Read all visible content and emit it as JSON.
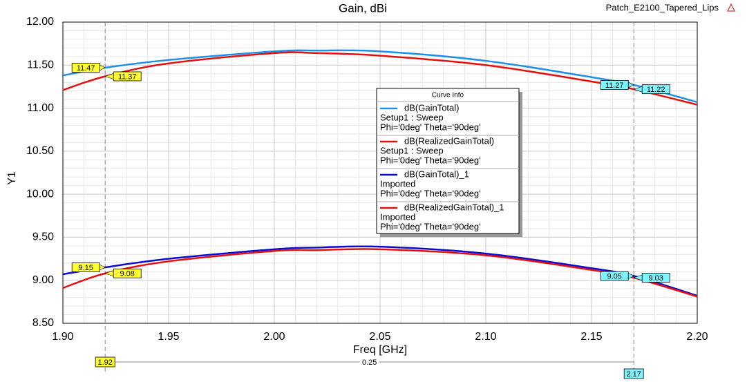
{
  "chart_data": {
    "type": "line",
    "title": "Gain, dBi",
    "design": "Patch_E2100_Tapered_Lips",
    "xlabel": "Freq [GHz]",
    "ylabel": "Y1",
    "x": [
      1.9,
      1.92,
      1.95,
      2.0,
      2.02,
      2.05,
      2.1,
      2.15,
      2.17,
      2.2
    ],
    "series": [
      {
        "name": "dB(GainTotal)",
        "source": "Setup1 : Sweep",
        "context": "Phi='0deg' Theta='90deg'",
        "color": "#1e8fe6",
        "values": [
          11.38,
          11.47,
          11.56,
          11.66,
          11.67,
          11.66,
          11.55,
          11.36,
          11.27,
          11.07
        ]
      },
      {
        "name": "dB(RealizedGainTotal)",
        "source": "Setup1 : Sweep",
        "context": "Phi='0deg' Theta='90deg'",
        "color": "#e41010",
        "values": [
          11.21,
          11.37,
          11.52,
          11.64,
          11.64,
          11.61,
          11.5,
          11.31,
          11.22,
          11.04
        ]
      },
      {
        "name": "dB(GainTotal)_1",
        "source": "Imported",
        "context": "Phi='0deg' Theta='90deg'",
        "color": "#0a0ad0",
        "values": [
          9.07,
          9.15,
          9.25,
          9.36,
          9.38,
          9.39,
          9.31,
          9.14,
          9.05,
          8.82
        ]
      },
      {
        "name": "dB(RealizedGainTotal)_1",
        "source": "Imported",
        "context": "Phi='0deg' Theta='90deg'",
        "color": "#e41010",
        "values": [
          8.91,
          9.08,
          9.22,
          9.34,
          9.35,
          9.36,
          9.29,
          9.12,
          9.03,
          8.81
        ]
      }
    ],
    "legend_title": "Curve Info",
    "markers": [
      1.92,
      2.17
    ],
    "marker_delta": 0.25,
    "xlim": [
      1.9,
      2.2
    ],
    "ylim": [
      8.5,
      12.0
    ],
    "xticks": [
      {
        "value": 1.9,
        "label": "1.90"
      },
      1.95,
      {
        "value": 2.0,
        "label": "2.00"
      },
      2.05,
      {
        "value": 2.1,
        "label": "2.10"
      },
      2.15,
      {
        "value": 2.2,
        "label": "2.20"
      }
    ],
    "yticks": [
      {
        "value": 8.5,
        "label": "8.50"
      },
      {
        "value": 9.0,
        "label": "9.00"
      },
      {
        "value": 9.5,
        "label": "9.50"
      },
      {
        "value": 10.0,
        "label": "10.00"
      },
      {
        "value": 10.5,
        "label": "10.50"
      },
      {
        "value": 11.0,
        "label": "11.00"
      },
      {
        "value": 11.5,
        "label": "11.50"
      },
      {
        "value": 12.0,
        "label": "12.00"
      }
    ],
    "grid": true,
    "minor_divisions": 5
  }
}
